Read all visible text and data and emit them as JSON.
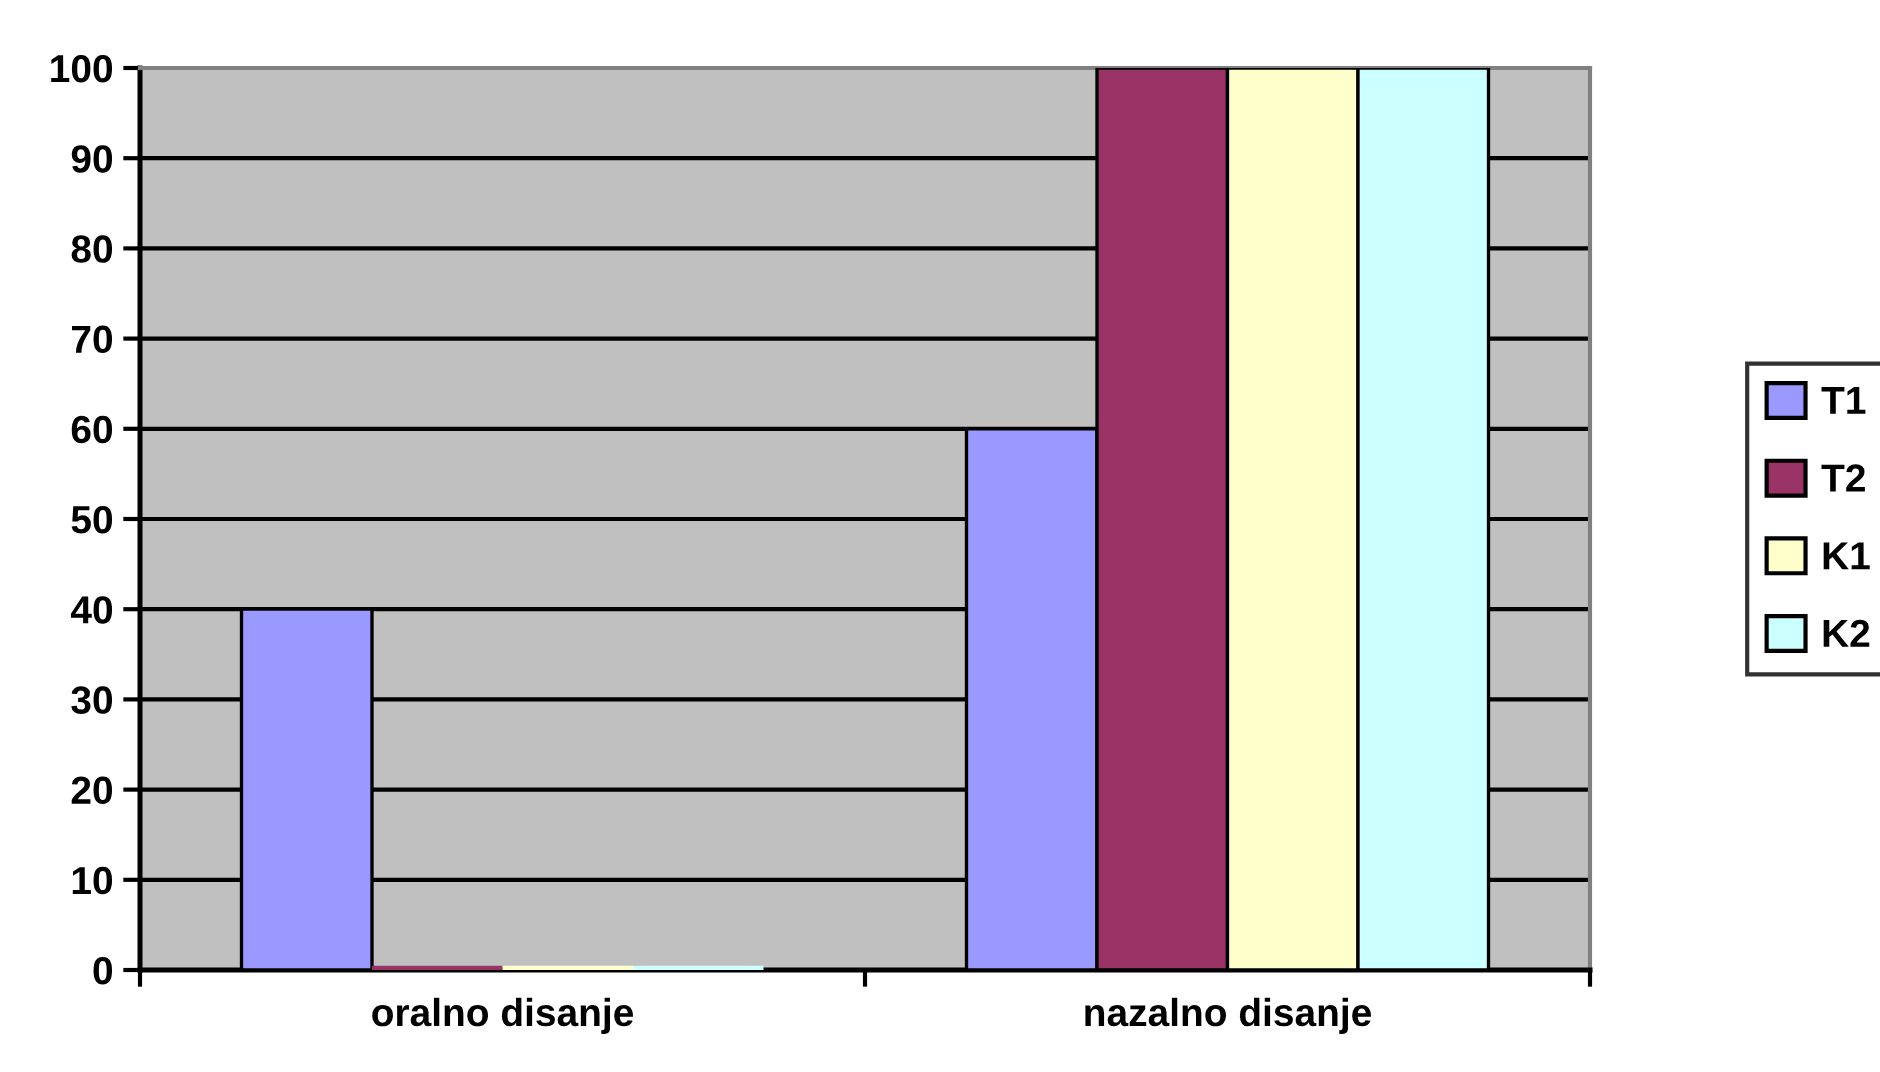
{
  "chart_data": {
    "type": "bar",
    "categories": [
      "oralno disanje",
      "nazalno disanje"
    ],
    "series": [
      {
        "name": "T1",
        "color": "#9999ff",
        "values": [
          40,
          60
        ]
      },
      {
        "name": "T2",
        "color": "#993366",
        "values": [
          0,
          100
        ]
      },
      {
        "name": "K1",
        "color": "#ffffcc",
        "values": [
          0,
          100
        ]
      },
      {
        "name": "K2",
        "color": "#ccffff",
        "values": [
          0,
          100
        ]
      }
    ],
    "ylim": [
      0,
      100
    ],
    "yticks": [
      0,
      10,
      20,
      30,
      40,
      50,
      60,
      70,
      80,
      90,
      100
    ],
    "grid": "y",
    "legend": "right"
  }
}
